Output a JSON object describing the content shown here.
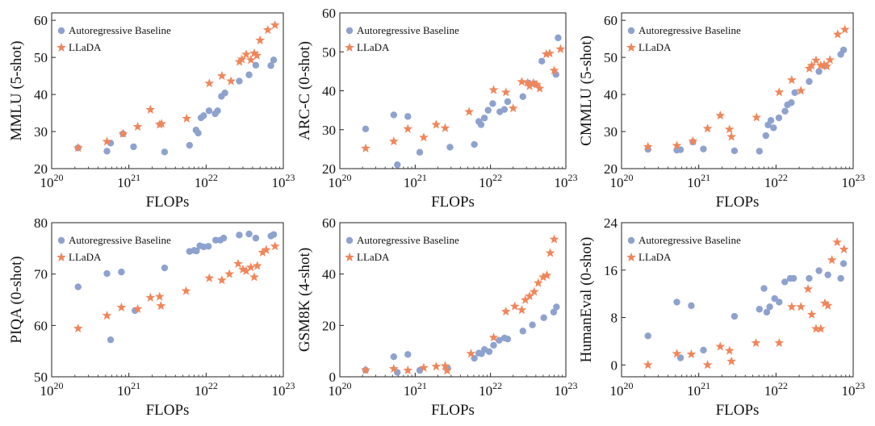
{
  "colors": {
    "baseline": "#8ea2cf",
    "llada": "#f0865a"
  },
  "chart_data": [
    {
      "type": "scatter",
      "title": "",
      "xlabel": "FLOPs",
      "ylabel": "MMLU (5-shot)",
      "xscale": "log",
      "xlim": [
        1e+20,
        1e+23
      ],
      "ylim": [
        20,
        62
      ],
      "yticks": [
        20,
        30,
        40,
        50,
        60
      ],
      "legend": [
        "Autoregressive Baseline",
        "LLaDA"
      ],
      "series": [
        {
          "name": "Autoregressive Baseline",
          "x": [
            2.2e+20,
            5.2e+20,
            5.8e+20,
            8.4e+20,
            1.15e+21,
            2.9e+21,
            6.1e+21,
            7.4e+21,
            7.9e+21,
            8.6e+21,
            9.3e+21,
            1.09e+22,
            1.31e+22,
            1.41e+22,
            1.58e+22,
            1.75e+22,
            2.69e+22,
            3.6e+22,
            4.4e+22,
            6.9e+22,
            7.5e+22
          ],
          "y": [
            25.6,
            24.7,
            26.9,
            29.4,
            25.9,
            24.5,
            26.3,
            30.4,
            29.6,
            33.7,
            34.3,
            35.6,
            34.8,
            35.6,
            39.5,
            40.4,
            43.6,
            45.3,
            47.9,
            47.8,
            49.3
          ]
        },
        {
          "name": "LLaDA",
          "x": [
            2.2e+20,
            5.2e+20,
            8.4e+20,
            1.3e+21,
            1.9e+21,
            2.5e+21,
            2.65e+21,
            5.6e+21,
            1.1e+22,
            1.6e+22,
            2.1e+22,
            2.7e+22,
            2.9e+22,
            3.3e+22,
            3.8e+22,
            4.2e+22,
            4.55e+22,
            5e+22,
            6.3e+22,
            7.8e+22
          ],
          "y": [
            25.6,
            27.3,
            29.4,
            31.3,
            35.9,
            31.9,
            32.1,
            33.5,
            43.0,
            45.0,
            43.6,
            48.8,
            49.5,
            50.8,
            49.3,
            51.1,
            50.5,
            54.6,
            57.4,
            58.7
          ]
        }
      ]
    },
    {
      "type": "scatter",
      "title": "",
      "xlabel": "FLOPs",
      "ylabel": "ARC-C (0-shot)",
      "xscale": "log",
      "xlim": [
        1e+20,
        1e+23
      ],
      "ylim": [
        20,
        60
      ],
      "yticks": [
        20,
        30,
        40,
        50,
        60
      ],
      "legend": [
        "Autoregressive Baseline",
        "LLaDA"
      ],
      "series": [
        {
          "name": "Autoregressive Baseline",
          "x": [
            2.2e+20,
            5.2e+20,
            5.8e+20,
            8e+20,
            1.15e+21,
            2.9e+21,
            6.1e+21,
            7e+21,
            7.5e+21,
            8.3e+21,
            9.3e+21,
            1.07e+22,
            1.33e+22,
            1.53e+22,
            1.69e+22,
            2.69e+22,
            3.2e+22,
            3.8e+22,
            4.8e+22,
            7.4e+22,
            7.9e+22
          ],
          "y": [
            30.2,
            33.8,
            21.0,
            33.4,
            24.2,
            25.5,
            26.2,
            32.1,
            31.3,
            33.0,
            35.0,
            36.7,
            34.6,
            35.2,
            37.2,
            38.5,
            42.0,
            41.8,
            47.6,
            44.2,
            53.6
          ]
        },
        {
          "name": "LLaDA",
          "x": [
            2.2e+20,
            5.2e+20,
            8e+20,
            1.3e+21,
            1.9e+21,
            2.5e+21,
            5.2e+21,
            1.1e+22,
            1.6e+22,
            2e+22,
            2.6e+22,
            3.1e+22,
            3.3e+22,
            3.7e+22,
            4.1e+22,
            4.5e+22,
            5.5e+22,
            6.1e+22,
            7e+22,
            8.5e+22
          ],
          "y": [
            25.2,
            27.0,
            30.2,
            28.0,
            31.3,
            30.4,
            34.6,
            40.2,
            39.6,
            35.5,
            42.3,
            42.0,
            41.2,
            42.0,
            41.6,
            40.6,
            49.4,
            49.6,
            45.2,
            50.7
          ]
        }
      ]
    },
    {
      "type": "scatter",
      "title": "",
      "xlabel": "FLOPs",
      "ylabel": "CMMLU (5-shot)",
      "xscale": "log",
      "xlim": [
        1e+20,
        1e+23
      ],
      "ylim": [
        20,
        62
      ],
      "yticks": [
        20,
        30,
        40,
        50,
        60
      ],
      "legend": [
        "Autoregressive Baseline",
        "LLaDA"
      ],
      "series": [
        {
          "name": "Autoregressive Baseline",
          "x": [
            2.2e+20,
            5.2e+20,
            5.8e+20,
            8.4e+20,
            1.15e+21,
            2.9e+21,
            6.1e+21,
            7.4e+21,
            7.9e+21,
            8.6e+21,
            9.3e+21,
            1.09e+22,
            1.31e+22,
            1.41e+22,
            1.58e+22,
            1.75e+22,
            2.69e+22,
            3.6e+22,
            4.4e+22,
            6.9e+22,
            7.5e+22
          ],
          "y": [
            25.2,
            25.0,
            25.1,
            27.2,
            25.3,
            24.8,
            24.7,
            28.9,
            31.8,
            33.0,
            31.0,
            33.7,
            35.5,
            37.2,
            37.8,
            40.5,
            43.5,
            46.2,
            47.7,
            50.8,
            52.0
          ]
        },
        {
          "name": "LLaDA",
          "x": [
            2.2e+20,
            5.2e+20,
            8.4e+20,
            1.3e+21,
            1.9e+21,
            2.5e+21,
            2.65e+21,
            5.6e+21,
            1.1e+22,
            1.6e+22,
            2.1e+22,
            2.7e+22,
            2.9e+22,
            3.3e+22,
            3.8e+22,
            4.2e+22,
            4.55e+22,
            5e+22,
            6.3e+22,
            7.8e+22
          ],
          "y": [
            25.9,
            26.2,
            27.4,
            30.8,
            34.3,
            30.6,
            28.6,
            33.8,
            40.6,
            43.9,
            41.0,
            47.0,
            47.8,
            49.2,
            47.8,
            48.0,
            47.6,
            49.3,
            56.2,
            57.5
          ]
        }
      ]
    },
    {
      "type": "scatter",
      "title": "",
      "xlabel": "FLOPs",
      "ylabel": "PIQA (0-shot)",
      "xscale": "log",
      "xlim": [
        1e+20,
        1e+23
      ],
      "ylim": [
        50,
        80
      ],
      "yticks": [
        50,
        60,
        70,
        80
      ],
      "legend": [
        "Autoregressive Baseline",
        "LLaDA"
      ],
      "series": [
        {
          "name": "Autoregressive Baseline",
          "x": [
            2.2e+20,
            5.2e+20,
            5.8e+20,
            8e+20,
            1.2e+21,
            2.9e+21,
            6.1e+21,
            7e+21,
            7.5e+21,
            8.3e+21,
            9.3e+21,
            1.07e+22,
            1.33e+22,
            1.53e+22,
            1.69e+22,
            2.69e+22,
            3.6e+22,
            4.4e+22,
            6.9e+22,
            7.5e+22
          ],
          "y": [
            67.5,
            70.1,
            57.2,
            70.4,
            62.9,
            71.2,
            74.4,
            74.6,
            74.5,
            75.5,
            75.3,
            75.4,
            76.6,
            76.6,
            77.0,
            77.6,
            77.8,
            77.0,
            77.4,
            77.7
          ]
        },
        {
          "name": "LLaDA",
          "x": [
            2.2e+20,
            5.2e+20,
            8e+20,
            1.3e+21,
            1.9e+21,
            2.5e+21,
            2.6e+21,
            5.5e+21,
            1.1e+22,
            1.6e+22,
            2e+22,
            2.6e+22,
            3e+22,
            3.3e+22,
            3.8e+22,
            4.2e+22,
            4.6e+22,
            5.4e+22,
            6e+22,
            7.8e+22
          ],
          "y": [
            59.4,
            61.9,
            63.5,
            63.2,
            65.4,
            65.6,
            63.8,
            66.7,
            69.2,
            68.8,
            70.0,
            72.0,
            70.9,
            70.6,
            71.3,
            69.4,
            71.6,
            74.2,
            74.7,
            75.4
          ]
        }
      ]
    },
    {
      "type": "scatter",
      "title": "",
      "xlabel": "FLOPs",
      "ylabel": "GSM8K (4-shot)",
      "xscale": "log",
      "xlim": [
        1e+20,
        1e+23
      ],
      "ylim": [
        0,
        60
      ],
      "yticks": [
        0,
        20,
        40,
        60
      ],
      "legend": [
        "Autoregressive Baseline",
        "LLaDA"
      ],
      "series": [
        {
          "name": "Autoregressive Baseline",
          "x": [
            2.2e+20,
            5.2e+20,
            5.8e+20,
            8e+20,
            1.15e+21,
            2.7e+21,
            6.1e+21,
            7e+21,
            7.6e+21,
            8.3e+21,
            9.6e+21,
            1.1e+22,
            1.3e+22,
            1.53e+22,
            1.69e+22,
            2.69e+22,
            3.6e+22,
            5.1e+22,
            6.9e+22,
            7.5e+22
          ],
          "y": [
            2.6,
            7.8,
            1.7,
            8.7,
            2.5,
            3.4,
            7.2,
            9.2,
            9.0,
            10.6,
            9.8,
            12.3,
            14.2,
            15.1,
            14.7,
            17.8,
            20.2,
            23.0,
            25.2,
            27.2
          ]
        },
        {
          "name": "LLaDA",
          "x": [
            2.2e+20,
            5.2e+20,
            8e+20,
            1.3e+21,
            1.9e+21,
            2.5e+21,
            2.65e+21,
            5.5e+21,
            1.1e+22,
            1.6e+22,
            2.1e+22,
            2.6e+22,
            2.9e+22,
            3.3e+22,
            3.8e+22,
            4.3e+22,
            5e+22,
            5.6e+22,
            6.2e+22,
            7e+22
          ],
          "y": [
            2.6,
            3.1,
            2.5,
            3.5,
            4.0,
            4.2,
            2.4,
            9.0,
            15.3,
            25.4,
            27.4,
            26.0,
            29.9,
            31.4,
            33.1,
            36.5,
            38.8,
            39.5,
            48.2,
            53.5
          ]
        }
      ]
    },
    {
      "type": "scatter",
      "title": "",
      "xlabel": "FLOPs",
      "ylabel": "HumanEval (0-shot)",
      "xscale": "log",
      "xlim": [
        1e+20,
        1e+23
      ],
      "ylim": [
        -2,
        24
      ],
      "yticks": [
        0,
        8,
        16,
        24
      ],
      "legend": [
        "Autoregressive Baseline",
        "LLaDA"
      ],
      "series": [
        {
          "name": "Autoregressive Baseline",
          "x": [
            2.2e+20,
            5.2e+20,
            5.8e+20,
            8e+20,
            1.15e+21,
            2.9e+21,
            6.1e+21,
            7e+21,
            7.6e+21,
            8.3e+21,
            9.6e+21,
            1.1e+22,
            1.3e+22,
            1.53e+22,
            1.69e+22,
            2.69e+22,
            3.6e+22,
            4.7e+22,
            6.9e+22,
            7.5e+22
          ],
          "y": [
            4.9,
            10.6,
            1.2,
            10.0,
            2.5,
            8.2,
            9.4,
            12.9,
            8.9,
            9.8,
            11.2,
            10.6,
            14.0,
            14.6,
            14.6,
            14.6,
            15.9,
            15.2,
            14.6,
            17.1
          ]
        },
        {
          "name": "LLaDA",
          "x": [
            2.2e+20,
            5.2e+20,
            8e+20,
            1.3e+21,
            1.9e+21,
            2.5e+21,
            2.65e+21,
            5.5e+21,
            1.1e+22,
            1.6e+22,
            2.1e+22,
            2.6e+22,
            2.9e+22,
            3.3e+22,
            3.8e+22,
            4.3e+22,
            4.7e+22,
            5.3e+22,
            6.2e+22,
            7.6e+22
          ],
          "y": [
            0.0,
            1.9,
            1.8,
            0.0,
            3.1,
            2.4,
            0.6,
            3.7,
            3.7,
            9.8,
            9.8,
            12.8,
            8.5,
            6.1,
            6.1,
            10.4,
            10.0,
            17.7,
            20.7,
            19.5
          ]
        }
      ]
    }
  ]
}
